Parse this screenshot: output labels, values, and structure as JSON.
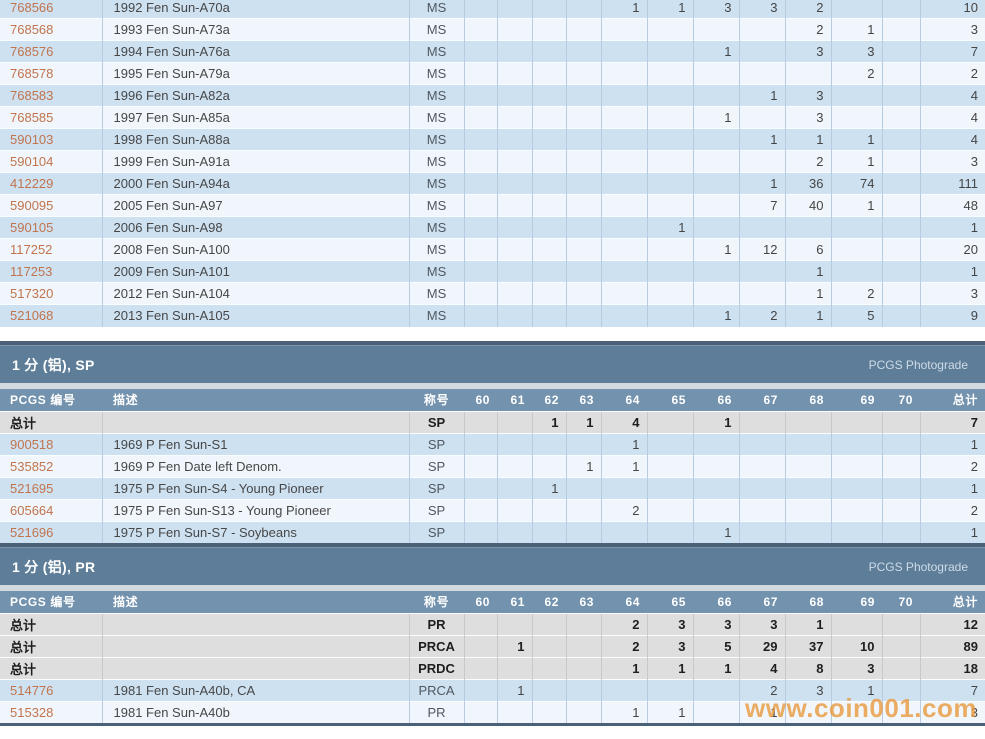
{
  "columns": {
    "pcgs": "PCGS 编号",
    "desc": "描述",
    "designation": "称号",
    "grades": [
      "60",
      "61",
      "62",
      "63",
      "64",
      "65",
      "66",
      "67",
      "68",
      "69",
      "70"
    ],
    "total": "总计"
  },
  "sections": {
    "sp": {
      "title": "1 分 (铝), SP",
      "photograde_label": "PCGS Photograde"
    },
    "pr": {
      "title": "1 分 (铝), PR",
      "photograde_label": "PCGS Photograde"
    }
  },
  "tables": {
    "ms": {
      "show_header": false,
      "rows": [
        {
          "pcgs": "768566",
          "desc": "1992 Fen Sun-A70a",
          "designation": "MS",
          "grades": [
            "",
            "",
            "",
            "",
            "1",
            "1",
            "3",
            "3",
            "2",
            "",
            ""
          ],
          "total": "10",
          "is_total": false
        },
        {
          "pcgs": "768568",
          "desc": "1993 Fen Sun-A73a",
          "designation": "MS",
          "grades": [
            "",
            "",
            "",
            "",
            "",
            "",
            "",
            "",
            "2",
            "1",
            ""
          ],
          "total": "3",
          "is_total": false
        },
        {
          "pcgs": "768576",
          "desc": "1994 Fen Sun-A76a",
          "designation": "MS",
          "grades": [
            "",
            "",
            "",
            "",
            "",
            "",
            "1",
            "",
            "3",
            "3",
            ""
          ],
          "total": "7",
          "is_total": false
        },
        {
          "pcgs": "768578",
          "desc": "1995 Fen Sun-A79a",
          "designation": "MS",
          "grades": [
            "",
            "",
            "",
            "",
            "",
            "",
            "",
            "",
            "",
            "2",
            ""
          ],
          "total": "2",
          "is_total": false
        },
        {
          "pcgs": "768583",
          "desc": "1996 Fen Sun-A82a",
          "designation": "MS",
          "grades": [
            "",
            "",
            "",
            "",
            "",
            "",
            "",
            "1",
            "3",
            "",
            ""
          ],
          "total": "4",
          "is_total": false
        },
        {
          "pcgs": "768585",
          "desc": "1997 Fen Sun-A85a",
          "designation": "MS",
          "grades": [
            "",
            "",
            "",
            "",
            "",
            "",
            "1",
            "",
            "3",
            "",
            ""
          ],
          "total": "4",
          "is_total": false
        },
        {
          "pcgs": "590103",
          "desc": "1998 Fen Sun-A88a",
          "designation": "MS",
          "grades": [
            "",
            "",
            "",
            "",
            "",
            "",
            "",
            "1",
            "1",
            "1",
            ""
          ],
          "total": "4",
          "is_total": false
        },
        {
          "pcgs": "590104",
          "desc": "1999 Fen Sun-A91a",
          "designation": "MS",
          "grades": [
            "",
            "",
            "",
            "",
            "",
            "",
            "",
            "",
            "2",
            "1",
            ""
          ],
          "total": "3",
          "is_total": false
        },
        {
          "pcgs": "412229",
          "desc": "2000 Fen Sun-A94a",
          "designation": "MS",
          "grades": [
            "",
            "",
            "",
            "",
            "",
            "",
            "",
            "1",
            "36",
            "74",
            ""
          ],
          "total": "111",
          "is_total": false
        },
        {
          "pcgs": "590095",
          "desc": "2005 Fen Sun-A97",
          "designation": "MS",
          "grades": [
            "",
            "",
            "",
            "",
            "",
            "",
            "",
            "7",
            "40",
            "1",
            ""
          ],
          "total": "48",
          "is_total": false
        },
        {
          "pcgs": "590105",
          "desc": "2006 Fen Sun-A98",
          "designation": "MS",
          "grades": [
            "",
            "",
            "",
            "",
            "",
            "1",
            "",
            "",
            "",
            "",
            ""
          ],
          "total": "1",
          "is_total": false
        },
        {
          "pcgs": "117252",
          "desc": "2008 Fen Sun-A100",
          "designation": "MS",
          "grades": [
            "",
            "",
            "",
            "",
            "",
            "",
            "1",
            "12",
            "6",
            "",
            ""
          ],
          "total": "20",
          "is_total": false
        },
        {
          "pcgs": "117253",
          "desc": "2009 Fen Sun-A101",
          "designation": "MS",
          "grades": [
            "",
            "",
            "",
            "",
            "",
            "",
            "",
            "",
            "1",
            "",
            ""
          ],
          "total": "1",
          "is_total": false
        },
        {
          "pcgs": "517320",
          "desc": "2012 Fen Sun-A104",
          "designation": "MS",
          "grades": [
            "",
            "",
            "",
            "",
            "",
            "",
            "",
            "",
            "1",
            "2",
            ""
          ],
          "total": "3",
          "is_total": false
        },
        {
          "pcgs": "521068",
          "desc": "2013 Fen Sun-A105",
          "designation": "MS",
          "grades": [
            "",
            "",
            "",
            "",
            "",
            "",
            "1",
            "2",
            "1",
            "5",
            ""
          ],
          "total": "9",
          "is_total": false
        }
      ]
    },
    "sp": {
      "show_header": true,
      "rows": [
        {
          "pcgs": "总计",
          "desc": "",
          "designation": "SP",
          "grades": [
            "",
            "",
            "1",
            "1",
            "4",
            "",
            "1",
            "",
            "",
            "",
            ""
          ],
          "total": "7",
          "is_total": true
        },
        {
          "pcgs": "900518",
          "desc": "1969 P Fen Sun-S1",
          "designation": "SP",
          "grades": [
            "",
            "",
            "",
            "",
            "1",
            "",
            "",
            "",
            "",
            "",
            ""
          ],
          "total": "1",
          "is_total": false
        },
        {
          "pcgs": "535852",
          "desc": "1969 P Fen Date left Denom.",
          "designation": "SP",
          "grades": [
            "",
            "",
            "",
            "1",
            "1",
            "",
            "",
            "",
            "",
            "",
            ""
          ],
          "total": "2",
          "is_total": false
        },
        {
          "pcgs": "521695",
          "desc": "1975 P Fen Sun-S4 - Young Pioneer",
          "designation": "SP",
          "grades": [
            "",
            "",
            "1",
            "",
            "",
            "",
            "",
            "",
            "",
            "",
            ""
          ],
          "total": "1",
          "is_total": false
        },
        {
          "pcgs": "605664",
          "desc": "1975 P Fen Sun-S13 - Young Pioneer",
          "designation": "SP",
          "grades": [
            "",
            "",
            "",
            "",
            "2",
            "",
            "",
            "",
            "",
            "",
            ""
          ],
          "total": "2",
          "is_total": false
        },
        {
          "pcgs": "521696",
          "desc": "1975 P Fen Sun-S7 - Soybeans",
          "designation": "SP",
          "grades": [
            "",
            "",
            "",
            "",
            "",
            "",
            "1",
            "",
            "",
            "",
            ""
          ],
          "total": "1",
          "is_total": false
        }
      ]
    },
    "pr": {
      "show_header": true,
      "rows": [
        {
          "pcgs": "总计",
          "desc": "",
          "designation": "PR",
          "grades": [
            "",
            "",
            "",
            "",
            "2",
            "3",
            "3",
            "3",
            "1",
            "",
            ""
          ],
          "total": "12",
          "is_total": true
        },
        {
          "pcgs": "总计",
          "desc": "",
          "designation": "PRCA",
          "grades": [
            "",
            "1",
            "",
            "",
            "2",
            "3",
            "5",
            "29",
            "37",
            "10",
            ""
          ],
          "total": "89",
          "is_total": true
        },
        {
          "pcgs": "总计",
          "desc": "",
          "designation": "PRDC",
          "grades": [
            "",
            "",
            "",
            "",
            "1",
            "1",
            "1",
            "4",
            "8",
            "3",
            ""
          ],
          "total": "18",
          "is_total": true
        },
        {
          "pcgs": "514776",
          "desc": "1981 Fen Sun-A40b, CA",
          "designation": "PRCA",
          "grades": [
            "",
            "1",
            "",
            "",
            "",
            "",
            "",
            "2",
            "3",
            "1",
            ""
          ],
          "total": "7",
          "is_total": false
        },
        {
          "pcgs": "515328",
          "desc": "1981 Fen Sun-A40b",
          "designation": "PR",
          "grades": [
            "",
            "",
            "",
            "",
            "1",
            "1",
            "",
            "1",
            "",
            "",
            ""
          ],
          "total": "3",
          "is_total": false
        }
      ]
    }
  },
  "watermark": {
    "text": "www.coin001.com"
  },
  "colors": {
    "band-bg": "#5e7d98",
    "header-bg": "#7392ae",
    "bar-bg": "#4a6177",
    "row-blue": "#cee1f1",
    "row-white": "#f0f6fb",
    "row-total": "#dedede",
    "link-color": "#c1744e",
    "watermark-color": "#e9993c"
  }
}
